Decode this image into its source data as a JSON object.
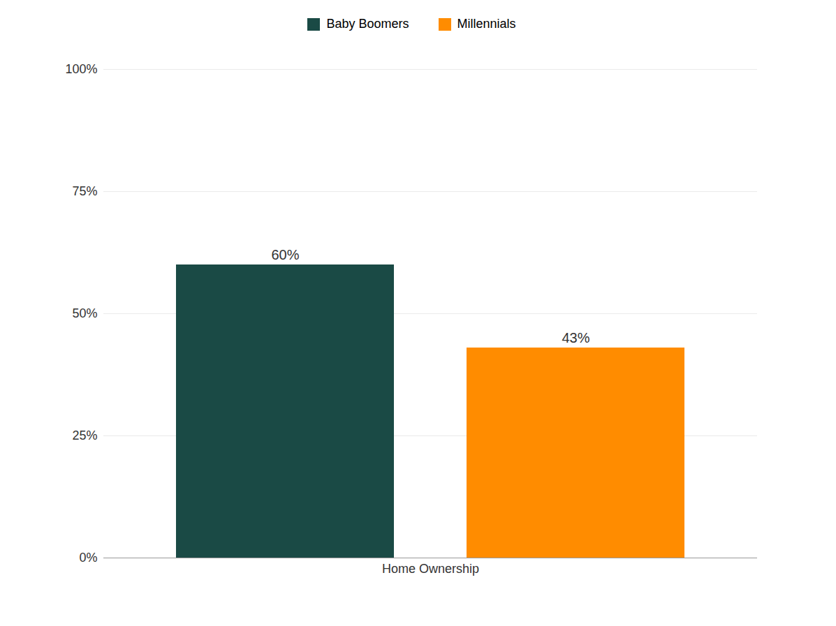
{
  "chart_data": {
    "type": "bar",
    "categories": [
      "Home Ownership"
    ],
    "series": [
      {
        "name": "Baby Boomers",
        "color": "#1a4a45",
        "values": [
          0.6
        ],
        "value_labels": [
          "60%"
        ]
      },
      {
        "name": "Millennials",
        "color": "#ff8c00",
        "values": [
          0.43
        ],
        "value_labels": [
          "43%"
        ]
      }
    ],
    "ylim": [
      0,
      1.0
    ],
    "yticks": [
      {
        "value": 0,
        "label": "0%"
      },
      {
        "value": 0.25,
        "label": "25%"
      },
      {
        "value": 0.5,
        "label": "50%"
      },
      {
        "value": 0.75,
        "label": "75%"
      },
      {
        "value": 1.0,
        "label": "100%"
      }
    ],
    "grid": true,
    "legend": "top",
    "data_labels": true
  }
}
